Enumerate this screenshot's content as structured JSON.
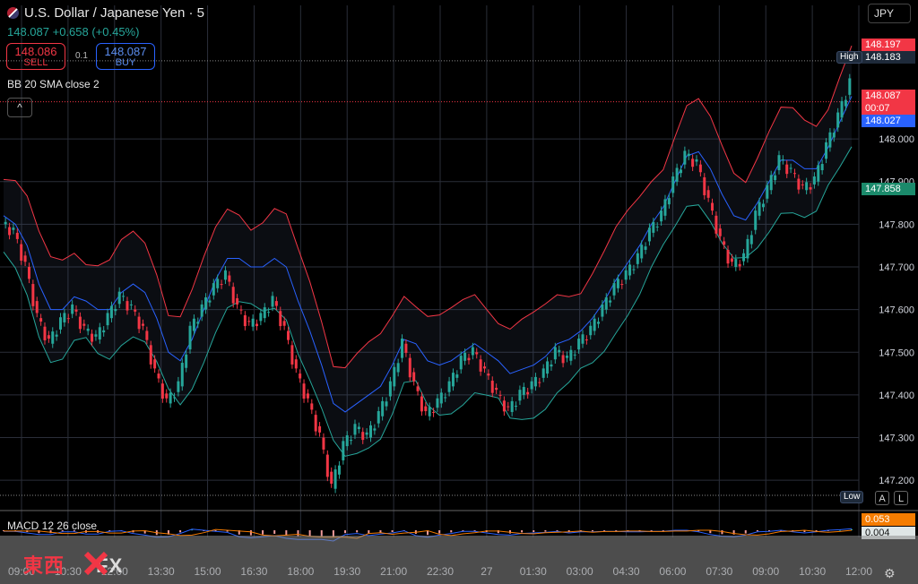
{
  "header": {
    "symbol": "U.S. Dollar / Japanese Yen · 5",
    "change": "148.087 +0.658 (+0.45%)",
    "sell_price": "148.086",
    "sell_label": "SELL",
    "buy_price": "148.087",
    "buy_label": "BUY",
    "spread": "0.1",
    "indicator": "BB 20 SMA close 2",
    "currency": "JPY",
    "macd": "MACD 12 26 close"
  },
  "price_tags": {
    "upper": "148.197",
    "high": "148.183",
    "high_label": "High",
    "last": "148.087",
    "countdown": "00:07",
    "mid": "148.027",
    "lower": "147.858",
    "low_label": "Low",
    "macd": "0.053",
    "signal": "0.004"
  },
  "buttons": {
    "auto": "A",
    "log": "L",
    "collapse": "^"
  },
  "watermark": {
    "brand": "東西",
    "fx": "FX"
  },
  "colors": {
    "up": "#26a69a",
    "down": "#f23645",
    "upper_band": "#f23645",
    "basis": "#2962ff",
    "lower_band": "#26a69a"
  },
  "chart_data": {
    "type": "line",
    "y_axis": {
      "min": 147.15,
      "max": 148.25,
      "ticks": [
        148.0,
        147.9,
        147.8,
        147.7,
        147.6,
        147.5,
        147.4,
        147.3,
        147.2
      ]
    },
    "x_labels": [
      "09:00",
      "10:30",
      "12:00",
      "13:30",
      "15:00",
      "16:30",
      "18:00",
      "19:30",
      "21:00",
      "22:30",
      "27",
      "01:30",
      "03:00",
      "04:30",
      "06:00",
      "07:30",
      "09:00",
      "10:30",
      "12:00"
    ],
    "series": [
      {
        "values": [
          147.8,
          147.78,
          147.7,
          147.58,
          147.52,
          147.57,
          147.6,
          147.55,
          147.53,
          147.58,
          147.63,
          147.6,
          147.55,
          147.45,
          147.38,
          147.42,
          147.55,
          147.6,
          147.65,
          147.68,
          147.6,
          147.56,
          147.58,
          147.62,
          147.55,
          147.45,
          147.38,
          147.3,
          147.18,
          147.28,
          147.32,
          147.3,
          147.35,
          147.42,
          147.52,
          147.42,
          147.35,
          147.38,
          147.42,
          147.48,
          147.5,
          147.45,
          147.4,
          147.36,
          147.4,
          147.42,
          147.45,
          147.5,
          147.48,
          147.52,
          147.55,
          147.6,
          147.65,
          147.68,
          147.72,
          147.78,
          147.82,
          147.9,
          147.96,
          147.94,
          147.85,
          147.76,
          147.7,
          147.72,
          147.82,
          147.88,
          147.95,
          147.92,
          147.88,
          147.9,
          147.98,
          148.05,
          148.13
        ]
      },
      {
        "name": "BB 20 SMA close 2",
        "values": [
          147.82,
          147.8,
          147.75,
          147.66,
          147.6,
          147.6,
          147.63,
          147.62,
          147.6,
          147.6,
          147.64,
          147.66,
          147.64,
          147.58,
          147.5,
          147.48,
          147.53,
          147.6,
          147.67,
          147.72,
          147.72,
          147.7,
          147.7,
          147.72,
          147.7,
          147.62,
          147.55,
          147.47,
          147.38,
          147.36,
          147.38,
          147.4,
          147.42,
          147.47,
          147.53,
          147.52,
          147.48,
          147.47,
          147.48,
          147.5,
          147.52,
          147.5,
          147.48,
          147.45,
          147.46,
          147.47,
          147.49,
          147.52,
          147.53,
          147.55,
          147.58,
          147.62,
          147.67,
          147.71,
          147.75,
          147.8,
          147.84,
          147.9,
          147.96,
          147.97,
          147.93,
          147.87,
          147.82,
          147.81,
          147.85,
          147.9,
          147.95,
          147.95,
          147.93,
          147.93,
          147.98,
          148.04,
          148.1
        ]
      }
    ],
    "macd": {
      "name": "MACD 12 26 close",
      "macd_last": 0.053,
      "signal_last": 0.004
    }
  }
}
